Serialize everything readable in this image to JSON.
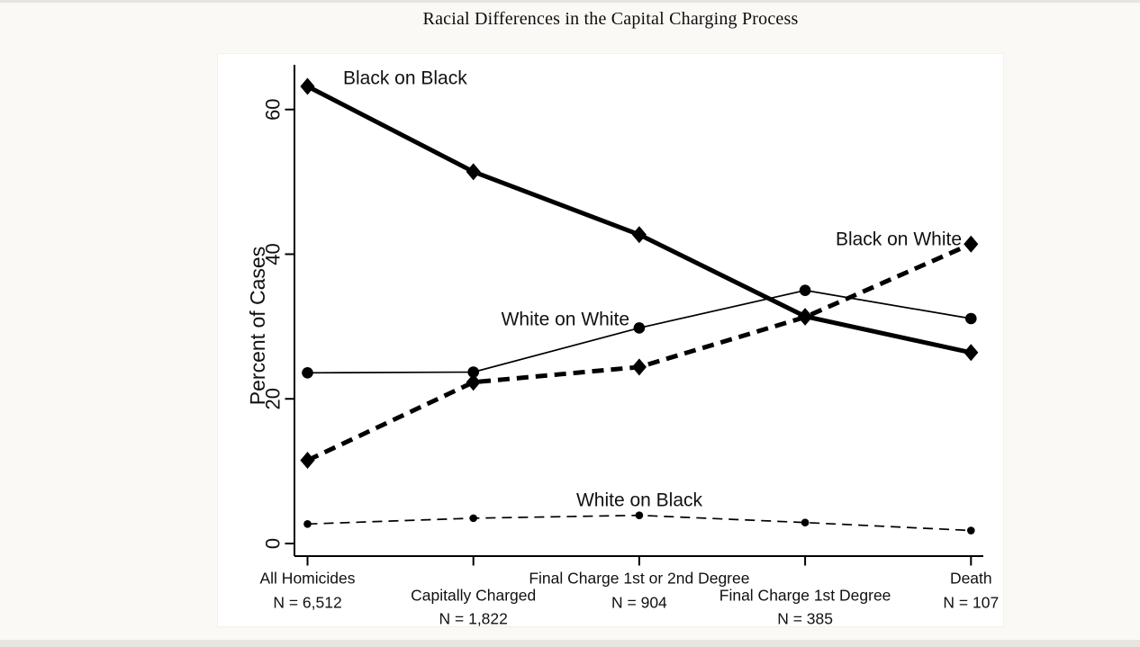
{
  "page": {
    "background_color": "#faf9f6",
    "panel_color": "#ffffff",
    "edge_strip_color": "#e7e5e1",
    "ink_color": "#000000"
  },
  "chart_data": {
    "type": "line",
    "title": "Racial Differences in the Capital Charging Process",
    "xlabel": "",
    "ylabel": "Percent of Cases",
    "yticks": [
      0,
      20,
      40,
      60
    ],
    "ylim": [
      0,
      66
    ],
    "grid": false,
    "legend_position": "inline-labels-near-lines",
    "line_color": "#000000",
    "categories": [
      "All Homicides",
      "Capitally Charged",
      "Final Charge 1st or 2nd Degree",
      "Final Charge 1st Degree",
      "Death"
    ],
    "category_counts": [
      "N = 6,512",
      "N = 1,822",
      "N = 904",
      "N = 385",
      "N = 107"
    ],
    "series": [
      {
        "name": "Black on Black",
        "values": [
          63.2,
          51.4,
          42.7,
          31.4,
          26.4
        ],
        "line_style": "thick-solid",
        "marker": "diamond"
      },
      {
        "name": "White on White",
        "values": [
          23.6,
          23.7,
          29.8,
          35,
          31.1
        ],
        "line_style": "thin-solid",
        "marker": "circle"
      },
      {
        "name": "Black on White",
        "values": [
          11.5,
          22.3,
          24.4,
          31.3,
          41.4
        ],
        "line_style": "thick-dashed",
        "marker": "diamond"
      },
      {
        "name": "White on Black",
        "values": [
          2.7,
          3.5,
          3.9,
          2.9,
          1.8
        ],
        "line_style": "thin-dashed",
        "marker": "circle-small"
      }
    ]
  }
}
